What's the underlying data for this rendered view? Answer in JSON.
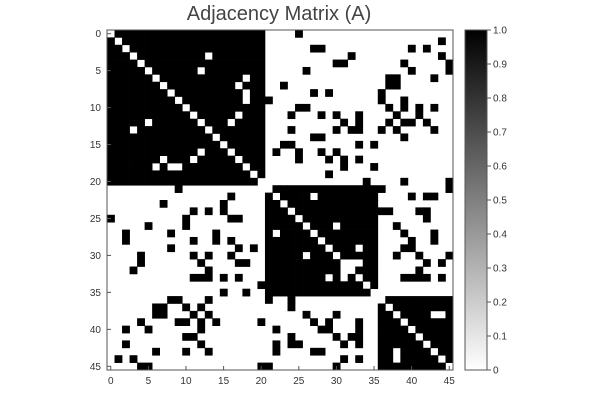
{
  "chart_data": {
    "type": "heatmap",
    "title": "Adjacency Matrix (A)",
    "xlabel": "",
    "ylabel": "",
    "size": 46,
    "xlim": [
      0,
      46
    ],
    "ylim": [
      46,
      0
    ],
    "x_ticks": [
      0,
      5,
      10,
      15,
      20,
      25,
      30,
      35,
      40,
      45
    ],
    "y_ticks": [
      0,
      5,
      10,
      15,
      20,
      25,
      30,
      35,
      40,
      45
    ],
    "colorbar": {
      "range": [
        0,
        1
      ],
      "ticks": [
        "0",
        "0.1",
        "0.2",
        "0.3",
        "0.4",
        "0.5",
        "0.6",
        "0.7",
        "0.8",
        "0.9",
        "1.0"
      ],
      "colormap": "gray_reversed"
    },
    "communities": [
      [
        0,
        20
      ],
      [
        21,
        35
      ],
      [
        36,
        45
      ]
    ],
    "extra_zeros_within_blocks": [
      [
        5,
        12
      ],
      [
        7,
        17
      ],
      [
        16,
        12
      ],
      [
        13,
        3
      ],
      [
        17,
        11
      ],
      [
        18,
        6
      ],
      [
        18,
        8
      ],
      [
        18,
        9
      ],
      [
        27,
        22
      ],
      [
        29,
        33
      ],
      [
        30,
        26
      ],
      [
        31,
        33
      ],
      [
        32,
        31
      ],
      [
        38,
        43
      ],
      [
        38,
        44
      ]
    ],
    "edges_between_blocks": [
      [
        0,
        25
      ],
      [
        2,
        28
      ],
      [
        2,
        40
      ],
      [
        2,
        42
      ],
      [
        3,
        32
      ],
      [
        3,
        44
      ],
      [
        4,
        30
      ],
      [
        4,
        39
      ],
      [
        5,
        40
      ],
      [
        5,
        45
      ],
      [
        6,
        38
      ],
      [
        6,
        43
      ],
      [
        7,
        37
      ],
      [
        7,
        23
      ],
      [
        9,
        21
      ],
      [
        9,
        36
      ],
      [
        10,
        26
      ],
      [
        10,
        39
      ],
      [
        11,
        24
      ],
      [
        11,
        30
      ],
      [
        11,
        33
      ],
      [
        11,
        38
      ],
      [
        12,
        33
      ],
      [
        12,
        37
      ],
      [
        12,
        40
      ],
      [
        13,
        30
      ],
      [
        14,
        27
      ],
      [
        14,
        39
      ],
      [
        15,
        24
      ],
      [
        15,
        33
      ],
      [
        15,
        35
      ],
      [
        16,
        20
      ],
      [
        16,
        25
      ],
      [
        16,
        28
      ],
      [
        16,
        30
      ],
      [
        17,
        25
      ],
      [
        17,
        29
      ],
      [
        17,
        33
      ],
      [
        18,
        35
      ],
      [
        19,
        29
      ],
      [
        20,
        39
      ],
      [
        20,
        45
      ],
      [
        21,
        9
      ],
      [
        21,
        36
      ],
      [
        22,
        16
      ],
      [
        22,
        40
      ],
      [
        23,
        15
      ],
      [
        24,
        13
      ],
      [
        24,
        42
      ],
      [
        25,
        0
      ],
      [
        25,
        10
      ],
      [
        25,
        16
      ],
      [
        25,
        17
      ],
      [
        26,
        5
      ],
      [
        26,
        38
      ],
      [
        27,
        2
      ],
      [
        27,
        8
      ],
      [
        27,
        14
      ],
      [
        27,
        39
      ],
      [
        27,
        43
      ],
      [
        28,
        14
      ],
      [
        28,
        11
      ],
      [
        29,
        8
      ],
      [
        29,
        39
      ],
      [
        30,
        38
      ],
      [
        31,
        4
      ],
      [
        31,
        12
      ],
      [
        31,
        17
      ],
      [
        31,
        18
      ],
      [
        31,
        42
      ],
      [
        32,
        13
      ],
      [
        32,
        41
      ],
      [
        33,
        13
      ],
      [
        33,
        39
      ],
      [
        33,
        40
      ],
      [
        34,
        20
      ],
      [
        35,
        18
      ],
      [
        36,
        8
      ],
      [
        36,
        13
      ],
      [
        36,
        24
      ],
      [
        36,
        37
      ],
      [
        37,
        6
      ],
      [
        37,
        10
      ],
      [
        37,
        24
      ],
      [
        37,
        43
      ],
      [
        38,
        6
      ],
      [
        38,
        7
      ],
      [
        38,
        13
      ],
      [
        38,
        26
      ],
      [
        39,
        4
      ],
      [
        39,
        9
      ],
      [
        39,
        12
      ],
      [
        40,
        2
      ],
      [
        40,
        28
      ],
      [
        40,
        29
      ],
      [
        41,
        10
      ],
      [
        41,
        11
      ],
      [
        41,
        24
      ],
      [
        41,
        30
      ],
      [
        41,
        33
      ],
      [
        42,
        12
      ],
      [
        42,
        22
      ],
      [
        42,
        25
      ],
      [
        42,
        33
      ],
      [
        43,
        10
      ],
      [
        43,
        13
      ],
      [
        43,
        22
      ],
      [
        43,
        28
      ],
      [
        44,
        1
      ],
      [
        44,
        31
      ],
      [
        44,
        33
      ],
      [
        45,
        4
      ],
      [
        45,
        21
      ],
      [
        45,
        30
      ]
    ]
  }
}
